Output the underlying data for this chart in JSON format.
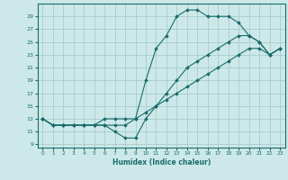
{
  "xlabel": "Humidex (Indice chaleur)",
  "background_color": "#cce8e8",
  "grid_color": "#aacccc",
  "line_color": "#1a6b6b",
  "xlim": [
    -0.5,
    23.5
  ],
  "ylim": [
    8.5,
    31
  ],
  "xticks": [
    0,
    1,
    2,
    3,
    4,
    5,
    6,
    7,
    8,
    9,
    10,
    11,
    12,
    13,
    14,
    15,
    16,
    17,
    18,
    19,
    20,
    21,
    22,
    23
  ],
  "yticks": [
    9,
    11,
    13,
    15,
    17,
    19,
    21,
    23,
    25,
    27,
    29
  ],
  "series": [
    {
      "x": [
        0,
        1,
        2,
        3,
        4,
        5,
        6,
        7,
        8,
        9,
        10,
        11,
        12,
        13,
        14,
        15,
        16,
        17,
        18,
        19,
        20,
        21,
        22,
        23
      ],
      "y": [
        13,
        12,
        12,
        12,
        12,
        12,
        12,
        12,
        12,
        13,
        19,
        24,
        26,
        29,
        30,
        30,
        29,
        29,
        29,
        28,
        26,
        25,
        23,
        24
      ]
    },
    {
      "x": [
        0,
        1,
        2,
        3,
        4,
        5,
        6,
        7,
        8,
        9,
        10,
        11,
        12,
        13,
        14,
        15,
        16,
        17,
        18,
        19,
        20,
        21,
        22,
        23
      ],
      "y": [
        13,
        12,
        12,
        12,
        12,
        12,
        12,
        11,
        10,
        10,
        13,
        15,
        17,
        19,
        21,
        22,
        23,
        24,
        25,
        26,
        26,
        25,
        23,
        24
      ]
    },
    {
      "x": [
        0,
        1,
        2,
        3,
        4,
        5,
        6,
        7,
        8,
        9,
        10,
        11,
        12,
        13,
        14,
        15,
        16,
        17,
        18,
        19,
        20,
        21,
        22,
        23
      ],
      "y": [
        13,
        12,
        12,
        12,
        12,
        12,
        13,
        13,
        13,
        13,
        14,
        15,
        16,
        17,
        18,
        19,
        20,
        21,
        22,
        23,
        24,
        24,
        23,
        24
      ]
    }
  ]
}
